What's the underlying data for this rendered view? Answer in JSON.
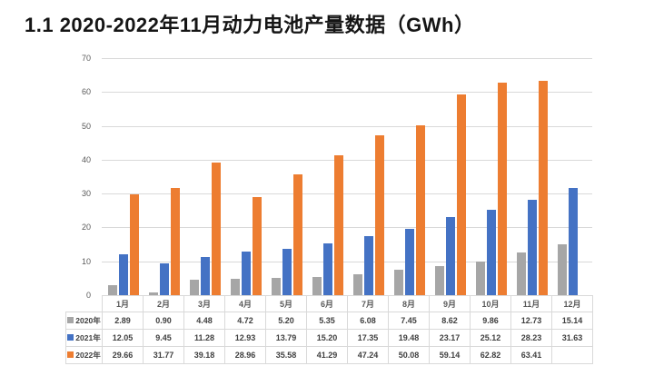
{
  "page": {
    "title": "1.1 2020-2022年11月动力电池产量数据（GWh）"
  },
  "chart_data": {
    "type": "bar",
    "title": "2020-2022年11月动力电池产量数据",
    "unit": "GWh",
    "categories": [
      "1月",
      "2月",
      "3月",
      "4月",
      "5月",
      "6月",
      "7月",
      "8月",
      "9月",
      "10月",
      "11月",
      "12月"
    ],
    "series": [
      {
        "name": "2020年",
        "color": "#A6A6A6",
        "values": [
          2.89,
          0.9,
          4.48,
          4.72,
          5.2,
          5.35,
          6.08,
          7.45,
          8.62,
          9.86,
          12.73,
          15.14
        ]
      },
      {
        "name": "2021年",
        "color": "#4472C4",
        "values": [
          12.05,
          9.45,
          11.28,
          12.93,
          13.79,
          15.2,
          17.35,
          19.48,
          23.17,
          25.12,
          28.23,
          31.63
        ]
      },
      {
        "name": "2022年",
        "color": "#ED7D31",
        "values": [
          29.66,
          31.77,
          39.18,
          28.96,
          35.58,
          41.29,
          47.24,
          50.08,
          59.14,
          62.82,
          63.41,
          null
        ]
      }
    ],
    "xlabel": "",
    "ylabel": "",
    "ylim": [
      0,
      70
    ],
    "yticks": [
      0,
      10,
      20,
      30,
      40,
      50,
      60,
      70
    ],
    "grid": true,
    "legend_position": "data-table-left",
    "colors": {
      "gridline": "#d9d9d9",
      "axis_text": "#595959",
      "table_text": "#404040",
      "table_border": "#d9d9d9",
      "title_text": "#151515"
    }
  }
}
